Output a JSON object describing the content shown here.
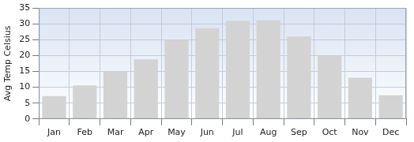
{
  "chart_data": {
    "type": "bar",
    "ylabel": "Avg Temp Celsius",
    "categories": [
      "Jan",
      "Feb",
      "Mar",
      "Apr",
      "May",
      "Jun",
      "Jul",
      "Aug",
      "Sep",
      "Oct",
      "Nov",
      "Dec"
    ],
    "values": [
      7.2,
      10.6,
      15,
      18.8,
      24.9,
      28.6,
      30.9,
      31.1,
      26,
      19.9,
      13,
      7.5
    ],
    "color": "#d3d3d3",
    "ylim": [
      0,
      35
    ],
    "yticks": [
      0,
      5,
      10,
      15,
      20,
      25,
      30,
      35
    ],
    "grid": true
  }
}
